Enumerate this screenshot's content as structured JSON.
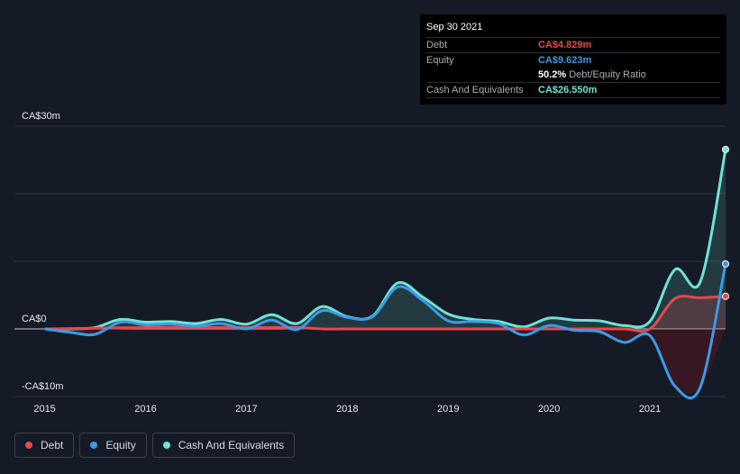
{
  "tooltip": {
    "date": "Sep 30 2021",
    "rows": [
      {
        "label": "Debt",
        "value": "CA$4.829m",
        "color": "#e5484d"
      },
      {
        "label": "Equity",
        "value": "CA$9.623m",
        "color": "#3b9be8"
      },
      {
        "label": "",
        "value": "50.2%",
        "sub": "Debt/Equity Ratio",
        "color": "#ffffff"
      },
      {
        "label": "Cash And Equivalents",
        "value": "CA$26.550m",
        "color": "#6fe3d5"
      }
    ]
  },
  "legend": [
    {
      "label": "Debt",
      "color": "#e5484d"
    },
    {
      "label": "Equity",
      "color": "#3b9be8"
    },
    {
      "label": "Cash And Equivalents",
      "color": "#6fe3d5"
    }
  ],
  "chart_data": {
    "type": "line",
    "y_tick_labels": [
      "CA$30m",
      "CA$0",
      "-CA$10m"
    ],
    "y_ticks": [
      30,
      0,
      -10
    ],
    "x_tick_labels": [
      "2015",
      "2016",
      "2017",
      "2018",
      "2019",
      "2020",
      "2021"
    ],
    "x_ticks": [
      2015,
      2016,
      2017,
      2018,
      2019,
      2020,
      2021
    ],
    "xlim": [
      2014.7,
      2021.75
    ],
    "ylim": [
      -10,
      30
    ],
    "grid": true,
    "series": [
      {
        "name": "Debt",
        "color": "#e5484d",
        "points": [
          [
            2015.0,
            0
          ],
          [
            2015.5,
            0.1
          ],
          [
            2016.0,
            0.2
          ],
          [
            2016.5,
            0.2
          ],
          [
            2017.0,
            0.2
          ],
          [
            2017.5,
            0.2
          ],
          [
            2017.75,
            0
          ],
          [
            2018.0,
            0
          ],
          [
            2018.5,
            0
          ],
          [
            2019.0,
            0
          ],
          [
            2019.5,
            0
          ],
          [
            2020.0,
            0
          ],
          [
            2020.5,
            0
          ],
          [
            2020.75,
            0
          ],
          [
            2021.0,
            0
          ],
          [
            2021.25,
            4.5
          ],
          [
            2021.5,
            4.6
          ],
          [
            2021.75,
            4.829
          ]
        ]
      },
      {
        "name": "Equity",
        "color": "#3b9be8",
        "points": [
          [
            2015.0,
            0
          ],
          [
            2015.25,
            -0.5
          ],
          [
            2015.5,
            -0.8
          ],
          [
            2015.75,
            1.0
          ],
          [
            2016.0,
            0.6
          ],
          [
            2016.25,
            0.7
          ],
          [
            2016.5,
            0.4
          ],
          [
            2016.75,
            0.8
          ],
          [
            2017.0,
            0
          ],
          [
            2017.25,
            1.3
          ],
          [
            2017.5,
            -0.1
          ],
          [
            2017.75,
            2.7
          ],
          [
            2018.0,
            1.7
          ],
          [
            2018.25,
            1.8
          ],
          [
            2018.5,
            6.2
          ],
          [
            2018.75,
            4.2
          ],
          [
            2019.0,
            1.2
          ],
          [
            2019.25,
            1.1
          ],
          [
            2019.5,
            0.8
          ],
          [
            2019.75,
            -0.9
          ],
          [
            2020.0,
            0.5
          ],
          [
            2020.25,
            -0.2
          ],
          [
            2020.5,
            -0.4
          ],
          [
            2020.75,
            -2.0
          ],
          [
            2021.0,
            -1.0
          ],
          [
            2021.25,
            -8.5
          ],
          [
            2021.5,
            -8.6
          ],
          [
            2021.75,
            9.623
          ]
        ]
      },
      {
        "name": "Cash And Equivalents",
        "color": "#6fe3d5",
        "points": [
          [
            2015.0,
            0
          ],
          [
            2015.25,
            0
          ],
          [
            2015.5,
            0.2
          ],
          [
            2015.75,
            1.4
          ],
          [
            2016.0,
            1.0
          ],
          [
            2016.25,
            1.1
          ],
          [
            2016.5,
            0.8
          ],
          [
            2016.75,
            1.4
          ],
          [
            2017.0,
            0.7
          ],
          [
            2017.25,
            2.1
          ],
          [
            2017.5,
            0.8
          ],
          [
            2017.75,
            3.3
          ],
          [
            2018.0,
            1.8
          ],
          [
            2018.25,
            1.9
          ],
          [
            2018.5,
            6.8
          ],
          [
            2018.75,
            4.7
          ],
          [
            2019.0,
            2.2
          ],
          [
            2019.25,
            1.4
          ],
          [
            2019.5,
            1.1
          ],
          [
            2019.75,
            0.3
          ],
          [
            2020.0,
            1.6
          ],
          [
            2020.25,
            1.3
          ],
          [
            2020.5,
            1.2
          ],
          [
            2020.75,
            0.5
          ],
          [
            2021.0,
            1.1
          ],
          [
            2021.25,
            8.8
          ],
          [
            2021.5,
            7.0
          ],
          [
            2021.75,
            26.55
          ]
        ]
      }
    ]
  }
}
